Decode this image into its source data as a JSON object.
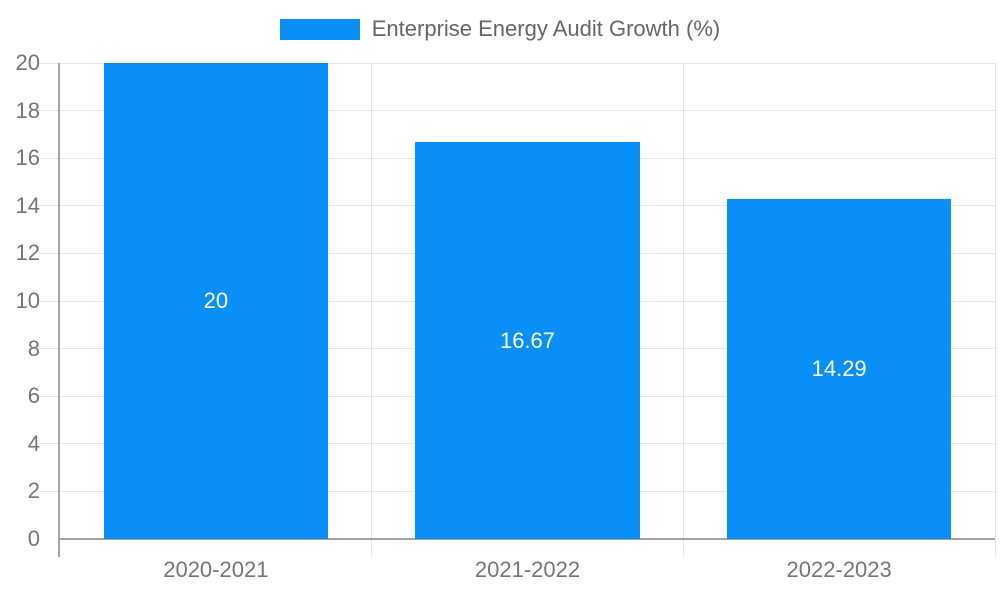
{
  "chart_data": {
    "type": "bar",
    "title": "Enterprise Energy Audit Growth (%)",
    "legend_position": "top",
    "categories": [
      "2020-2021",
      "2021-2022",
      "2022-2023"
    ],
    "series": [
      {
        "name": "Enterprise Energy Audit Growth (%)",
        "values": [
          20,
          16.67,
          14.29
        ],
        "value_labels": [
          "20",
          "16.67",
          "14.29"
        ]
      }
    ],
    "xlabel": "",
    "ylabel": "",
    "ylim": [
      0,
      20
    ],
    "y_ticks": [
      0,
      2,
      4,
      6,
      8,
      10,
      12,
      14,
      16,
      18,
      20
    ],
    "grid": true,
    "colors": {
      "bar": "#0a8ff8",
      "bar_value_label": "#ffffff",
      "tick_label": "#757575",
      "legend_text": "#666666",
      "gridline": "#e6e6e6",
      "axis_line": "#a3a3a3"
    }
  }
}
